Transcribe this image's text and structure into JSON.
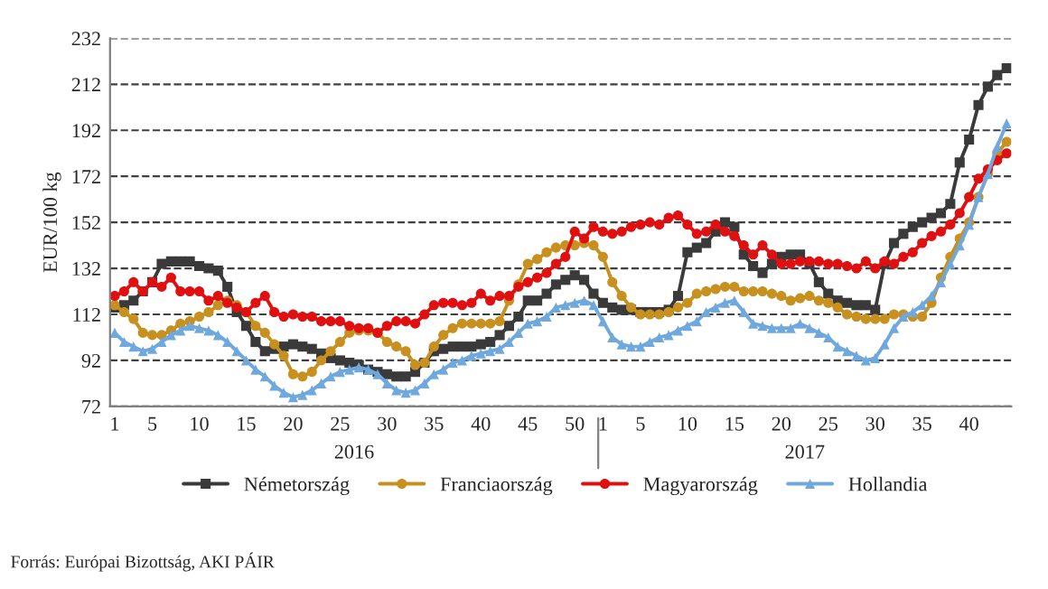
{
  "chart_data": {
    "type": "line",
    "ylabel": "EUR/100 kg",
    "categories": [
      "1",
      null,
      null,
      null,
      "5",
      null,
      null,
      null,
      null,
      "10",
      null,
      null,
      null,
      null,
      "15",
      null,
      null,
      null,
      null,
      "20",
      null,
      null,
      null,
      null,
      "25",
      null,
      null,
      null,
      null,
      "30",
      null,
      null,
      null,
      null,
      "35",
      null,
      null,
      null,
      null,
      "40",
      null,
      null,
      null,
      null,
      "45",
      null,
      null,
      null,
      null,
      "50",
      null,
      null,
      "1",
      null,
      null,
      null,
      "5",
      null,
      null,
      null,
      null,
      "10",
      null,
      null,
      null,
      null,
      "15",
      null,
      null,
      null,
      null,
      "20",
      null,
      null,
      null,
      null,
      "25",
      null,
      null,
      null,
      null,
      "30",
      null,
      null,
      null,
      null,
      "35",
      null,
      null,
      null,
      null,
      "40",
      null,
      null,
      null,
      null
    ],
    "series": [
      {
        "name": "Németország",
        "color": "#3a3a3a",
        "marker": "square",
        "values": [
          115,
          116,
          118,
          122,
          126,
          134,
          135,
          135,
          135,
          133,
          132,
          131,
          124,
          113,
          107,
          100,
          96,
          97,
          98,
          99,
          98,
          97,
          95,
          93,
          92,
          91,
          90,
          88,
          87,
          86,
          85,
          85,
          87,
          91,
          96,
          97,
          98,
          98,
          98,
          99,
          100,
          103,
          107,
          111,
          118,
          118,
          121,
          125,
          127,
          129,
          127,
          121,
          117,
          115,
          114,
          114,
          113,
          113,
          113,
          114,
          120,
          139,
          141,
          143,
          148,
          152,
          150,
          138,
          133,
          130,
          134,
          137,
          138,
          138,
          134,
          126,
          121,
          118,
          117,
          116,
          116,
          114,
          134,
          143,
          147,
          150,
          152,
          154,
          156,
          160,
          178,
          188,
          203,
          211,
          216,
          219
        ]
      },
      {
        "name": "Franciaország",
        "color": "#c8901e",
        "marker": "circle",
        "values": [
          116,
          113,
          110,
          104,
          103,
          103,
          105,
          108,
          109,
          111,
          113,
          116,
          118,
          116,
          113,
          107,
          104,
          99,
          94,
          86,
          85,
          87,
          92,
          96,
          100,
          104,
          105,
          105,
          104,
          100,
          98,
          96,
          90,
          91,
          98,
          103,
          106,
          108,
          108,
          108,
          108,
          109,
          118,
          125,
          134,
          136,
          139,
          141,
          142,
          142,
          143,
          142,
          137,
          126,
          120,
          115,
          112,
          112,
          112,
          113,
          115,
          117,
          121,
          122,
          123,
          124,
          124,
          122,
          122,
          122,
          121,
          120,
          118,
          119,
          120,
          118,
          117,
          115,
          112,
          111,
          110,
          110,
          110,
          112,
          112,
          111,
          111,
          117,
          128,
          137,
          145,
          152,
          163,
          173,
          182,
          187
        ]
      },
      {
        "name": "Magyarország",
        "color": "#e01010",
        "marker": "circle",
        "values": [
          120,
          122,
          126,
          122,
          126,
          124,
          128,
          122,
          122,
          122,
          118,
          120,
          117,
          115,
          113,
          117,
          120,
          113,
          111,
          112,
          111,
          111,
          109,
          109,
          109,
          107,
          106,
          106,
          104,
          107,
          109,
          109,
          108,
          112,
          116,
          117,
          117,
          116,
          117,
          121,
          118,
          120,
          120,
          124,
          126,
          128,
          130,
          134,
          137,
          148,
          145,
          150,
          148,
          147,
          148,
          150,
          151,
          152,
          151,
          154,
          155,
          151,
          147,
          148,
          151,
          148,
          146,
          142,
          138,
          142,
          138,
          134,
          134,
          135,
          135,
          135,
          134,
          134,
          133,
          132,
          135,
          132,
          135,
          134,
          137,
          139,
          143,
          146,
          148,
          151,
          156,
          163,
          171,
          175,
          179,
          182
        ]
      },
      {
        "name": "Hollandia",
        "color": "#6fa8dc",
        "marker": "triangle",
        "values": [
          104,
          100,
          98,
          96,
          97,
          100,
          103,
          105,
          107,
          106,
          105,
          103,
          100,
          96,
          92,
          88,
          85,
          81,
          78,
          76,
          77,
          79,
          82,
          85,
          87,
          88,
          89,
          88,
          86,
          82,
          79,
          78,
          79,
          82,
          86,
          88,
          91,
          92,
          94,
          95,
          96,
          97,
          100,
          104,
          108,
          109,
          111,
          115,
          116,
          117,
          118,
          116,
          109,
          102,
          99,
          98,
          98,
          100,
          102,
          103,
          105,
          107,
          109,
          113,
          115,
          117,
          118,
          113,
          108,
          107,
          106,
          106,
          106,
          108,
          106,
          104,
          102,
          98,
          96,
          94,
          92,
          93,
          99,
          106,
          111,
          113,
          116,
          120,
          126,
          134,
          142,
          151,
          163,
          173,
          185,
          195
        ]
      }
    ],
    "ylim": [
      72,
      232
    ],
    "yticks": [
      72,
      92,
      112,
      132,
      152,
      172,
      192,
      212,
      232
    ],
    "grid": "y",
    "legend": "bottom",
    "annotations": [
      "2016",
      "2017",
      "Forrás: Európai Bizottság, AKI PÁIR"
    ]
  }
}
